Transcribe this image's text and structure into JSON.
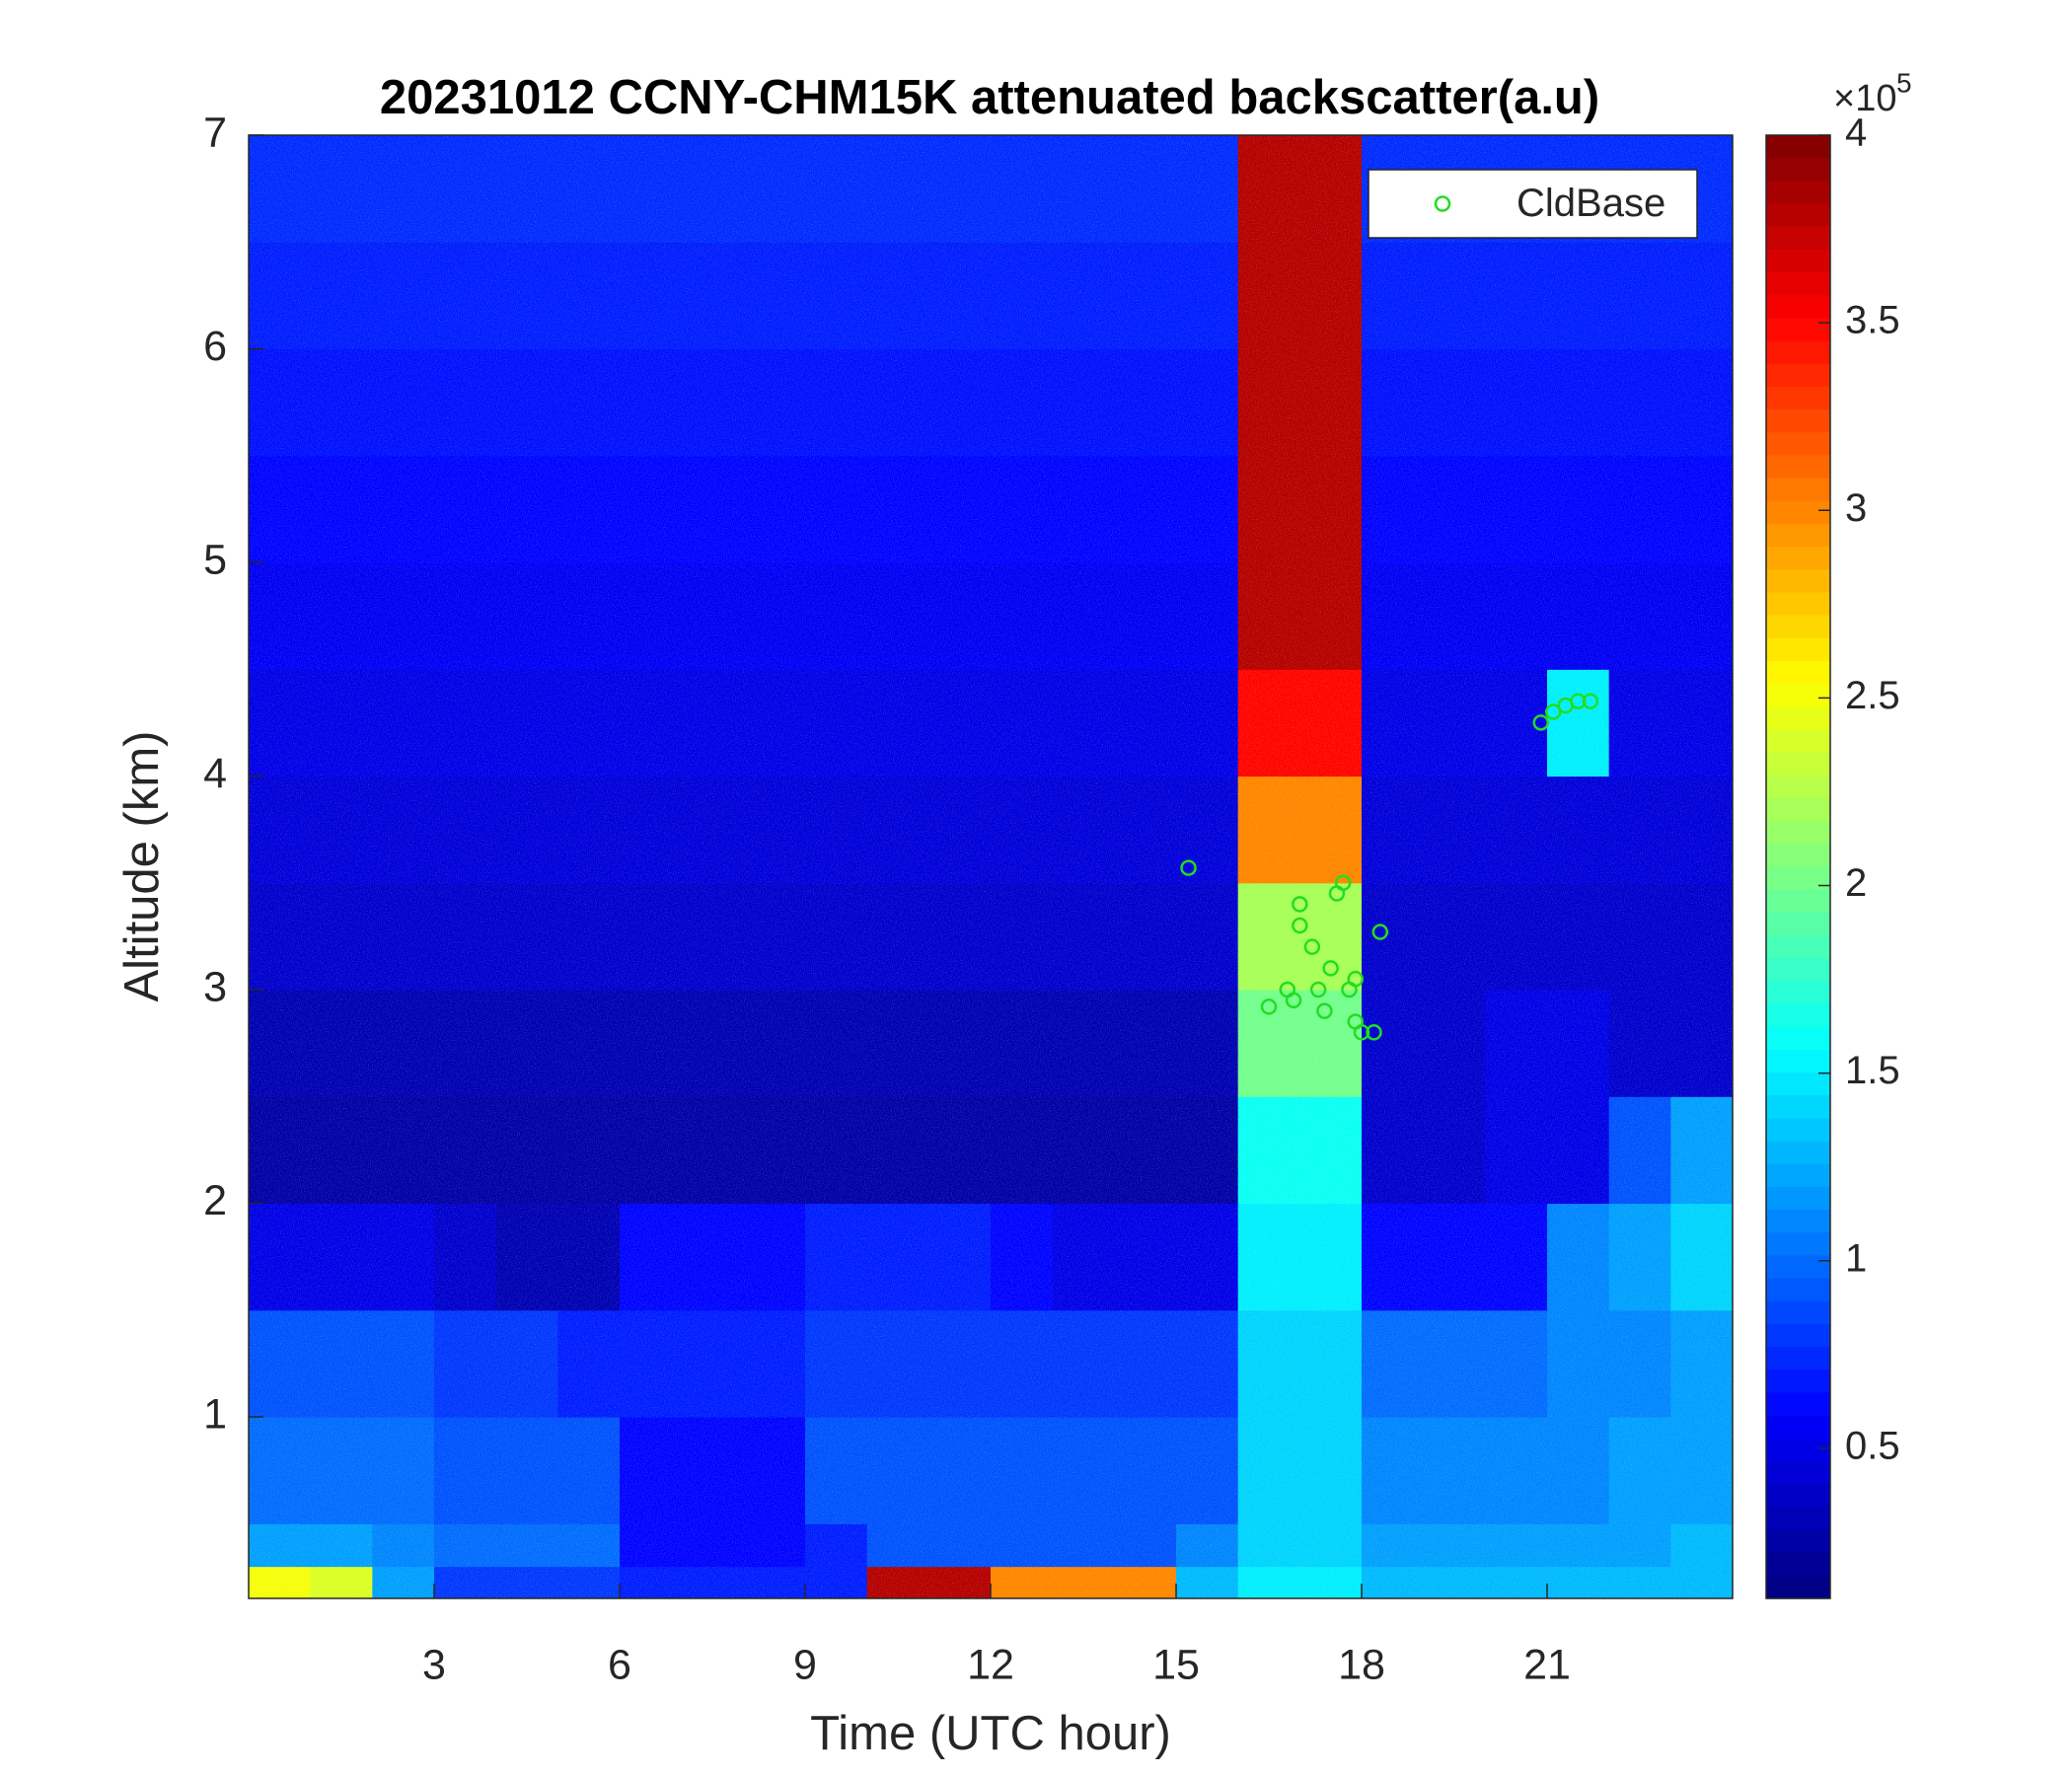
{
  "chart_data": {
    "type": "heatmap",
    "title": "20231012 CCNY-CHM15K attenuated backscatter(a.u)",
    "xlabel": "Time (UTC hour)",
    "ylabel": "Altitude (km)",
    "colormap": "jet",
    "xlim": [
      0,
      24
    ],
    "ylim": [
      0.15,
      7
    ],
    "xticks": [
      3,
      6,
      9,
      12,
      15,
      18,
      21
    ],
    "yticks": [
      1,
      2,
      3,
      4,
      5,
      6,
      7
    ],
    "x_bins": [
      0,
      1,
      2,
      3,
      4,
      5,
      6,
      7,
      8,
      9,
      10,
      11,
      12,
      13,
      14,
      15,
      16,
      17,
      18,
      19,
      20,
      21,
      22,
      23,
      24
    ],
    "y_bins": [
      0.15,
      0.3,
      0.5,
      1,
      1.5,
      2,
      2.5,
      3,
      3.5,
      4,
      4.5,
      5,
      5.5,
      6,
      6.5,
      7
    ],
    "values": [
      [
        2.5,
        2.4,
        1.2,
        0.8,
        0.8,
        0.8,
        0.7,
        0.7,
        0.7,
        0.7,
        3.8,
        3.8,
        3.0,
        3.0,
        3.0,
        1.3,
        1.5,
        1.5,
        1.3,
        1.3,
        1.3,
        1.3,
        1.3,
        1.3
      ],
      [
        1.2,
        1.2,
        1.1,
        1.0,
        1.0,
        1.0,
        0.6,
        0.6,
        0.6,
        0.7,
        0.9,
        0.9,
        0.9,
        0.9,
        0.9,
        1.1,
        1.4,
        1.4,
        1.2,
        1.2,
        1.2,
        1.2,
        1.2,
        1.3
      ],
      [
        1.0,
        1.0,
        1.0,
        0.9,
        0.9,
        0.9,
        0.6,
        0.6,
        0.6,
        0.9,
        0.9,
        0.9,
        0.9,
        0.9,
        0.9,
        0.9,
        1.4,
        1.4,
        1.1,
        1.1,
        1.1,
        1.1,
        1.2,
        1.2
      ],
      [
        0.9,
        0.9,
        0.9,
        0.8,
        0.8,
        0.7,
        0.7,
        0.7,
        0.7,
        0.8,
        0.8,
        0.8,
        0.8,
        0.8,
        0.8,
        0.8,
        1.4,
        1.4,
        1.0,
        1.0,
        1.0,
        1.1,
        1.1,
        1.2
      ],
      [
        0.5,
        0.5,
        0.5,
        0.4,
        0.3,
        0.3,
        0.6,
        0.6,
        0.6,
        0.7,
        0.7,
        0.7,
        0.6,
        0.5,
        0.5,
        0.5,
        1.5,
        1.5,
        0.6,
        0.6,
        0.6,
        1.1,
        1.2,
        1.4
      ],
      [
        0.25,
        0.25,
        0.25,
        0.25,
        0.25,
        0.25,
        0.25,
        0.25,
        0.25,
        0.25,
        0.25,
        0.25,
        0.25,
        0.25,
        0.25,
        0.25,
        1.6,
        1.6,
        0.4,
        0.4,
        0.5,
        0.5,
        0.9,
        1.2
      ],
      [
        0.3,
        0.3,
        0.3,
        0.3,
        0.3,
        0.3,
        0.3,
        0.3,
        0.3,
        0.3,
        0.3,
        0.3,
        0.3,
        0.3,
        0.3,
        0.3,
        2.0,
        2.0,
        0.4,
        0.4,
        0.5,
        0.5,
        0.4,
        0.4
      ],
      [
        0.4,
        0.4,
        0.4,
        0.4,
        0.4,
        0.4,
        0.4,
        0.4,
        0.4,
        0.4,
        0.4,
        0.4,
        0.4,
        0.4,
        0.4,
        0.4,
        2.2,
        2.2,
        0.4,
        0.4,
        0.4,
        0.4,
        0.4,
        0.4
      ],
      [
        0.45,
        0.45,
        0.45,
        0.45,
        0.45,
        0.45,
        0.45,
        0.45,
        0.45,
        0.45,
        0.45,
        0.45,
        0.45,
        0.45,
        0.45,
        0.45,
        3.0,
        3.0,
        0.45,
        0.45,
        0.45,
        0.45,
        0.45,
        0.45
      ],
      [
        0.5,
        0.5,
        0.5,
        0.5,
        0.5,
        0.5,
        0.5,
        0.5,
        0.5,
        0.5,
        0.5,
        0.5,
        0.5,
        0.5,
        0.5,
        0.5,
        3.5,
        3.5,
        0.5,
        0.5,
        0.5,
        1.5,
        0.5,
        0.5
      ],
      [
        0.55,
        0.55,
        0.55,
        0.55,
        0.55,
        0.55,
        0.55,
        0.55,
        0.55,
        0.55,
        0.55,
        0.55,
        0.55,
        0.55,
        0.55,
        0.55,
        3.8,
        3.8,
        0.55,
        0.55,
        0.55,
        0.55,
        0.55,
        0.55
      ],
      [
        0.6,
        0.6,
        0.6,
        0.6,
        0.6,
        0.6,
        0.6,
        0.6,
        0.6,
        0.6,
        0.6,
        0.6,
        0.6,
        0.6,
        0.6,
        0.6,
        3.8,
        3.8,
        0.6,
        0.6,
        0.6,
        0.6,
        0.6,
        0.6
      ],
      [
        0.65,
        0.65,
        0.65,
        0.65,
        0.65,
        0.65,
        0.65,
        0.65,
        0.65,
        0.65,
        0.65,
        0.65,
        0.65,
        0.65,
        0.65,
        0.65,
        3.8,
        3.8,
        0.65,
        0.65,
        0.65,
        0.65,
        0.65,
        0.65
      ],
      [
        0.7,
        0.7,
        0.7,
        0.7,
        0.7,
        0.7,
        0.7,
        0.7,
        0.7,
        0.7,
        0.7,
        0.7,
        0.7,
        0.7,
        0.7,
        0.7,
        3.8,
        3.8,
        0.7,
        0.7,
        0.7,
        0.7,
        0.7,
        0.7
      ],
      [
        0.75,
        0.75,
        0.75,
        0.75,
        0.75,
        0.75,
        0.75,
        0.75,
        0.75,
        0.75,
        0.75,
        0.75,
        0.75,
        0.75,
        0.75,
        0.75,
        3.8,
        3.8,
        0.75,
        0.75,
        0.75,
        0.75,
        0.75,
        0.75
      ]
    ],
    "colorbar": {
      "clim": [
        0.1,
        4
      ],
      "ticks": [
        0.5,
        1,
        1.5,
        2,
        2.5,
        3,
        3.5,
        4
      ],
      "multiplier": "×10",
      "exponent": "5"
    },
    "legend": "northeast",
    "series": [
      {
        "name": "CldBase",
        "type": "scatter",
        "color": "#22dd22",
        "x": [
          15.2,
          16.5,
          16.8,
          16.9,
          17.0,
          17.0,
          17.2,
          17.3,
          17.4,
          17.5,
          17.6,
          17.7,
          17.8,
          17.9,
          17.9,
          18.0,
          18.2,
          18.3,
          20.9,
          21.1,
          21.3,
          21.5,
          21.7
        ],
        "y": [
          3.57,
          2.92,
          3.0,
          2.95,
          3.3,
          3.4,
          3.2,
          3.0,
          2.9,
          3.1,
          3.45,
          3.5,
          3.0,
          2.85,
          3.05,
          2.8,
          2.8,
          3.27,
          4.25,
          4.3,
          4.33,
          4.35,
          4.35
        ]
      }
    ]
  }
}
